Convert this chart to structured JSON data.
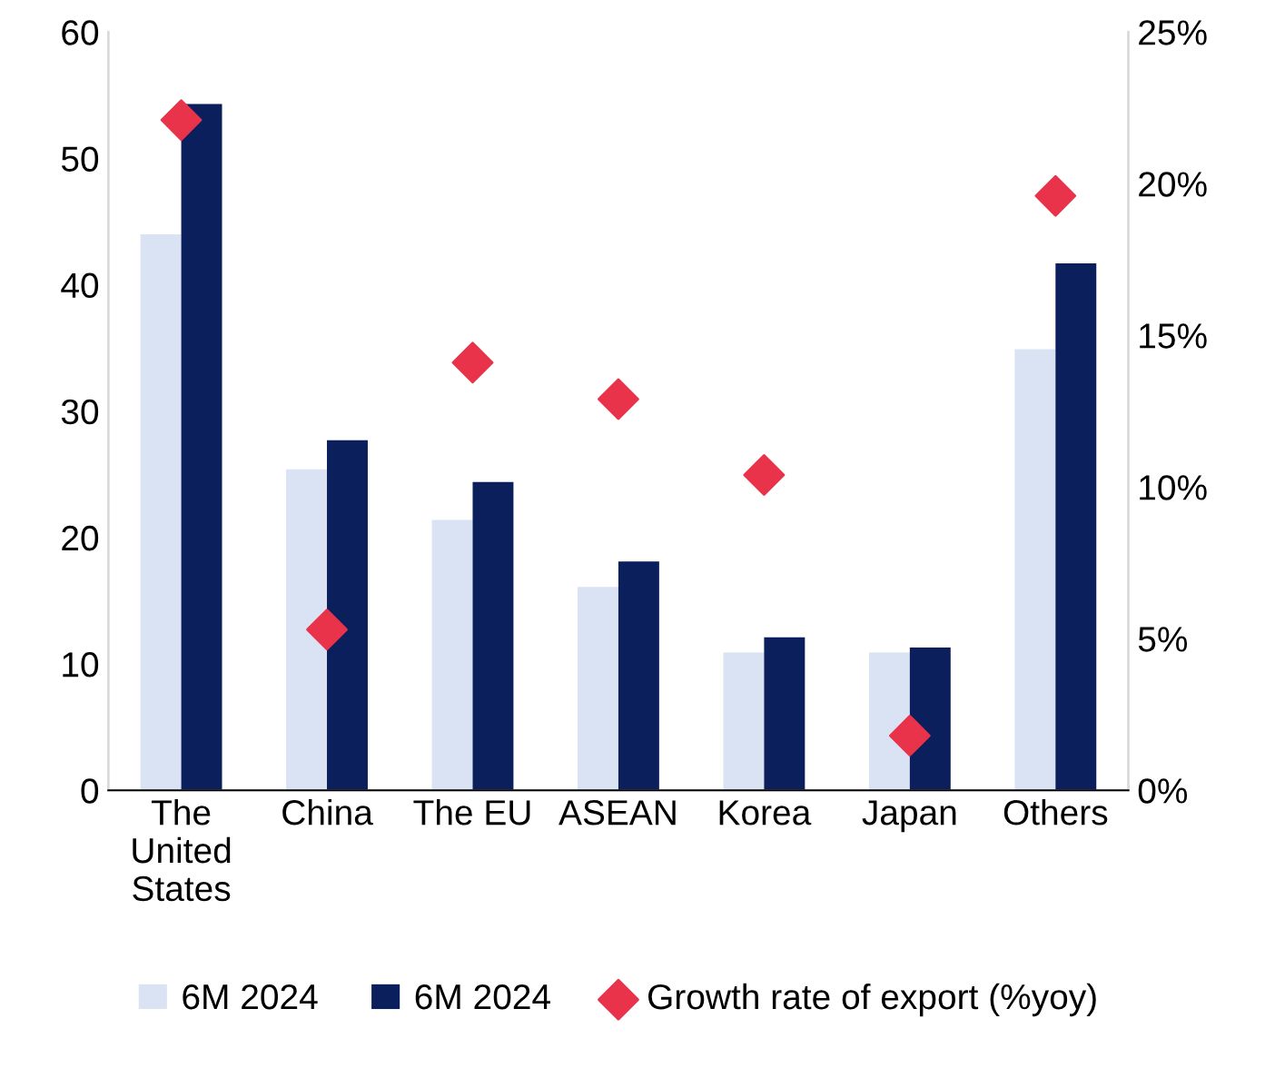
{
  "chart_data": {
    "type": "bar",
    "categories": [
      "The\nUnited\nStates",
      "China",
      "The EU",
      "ASEAN",
      "Korea",
      "Japan",
      "Others"
    ],
    "series": [
      {
        "name": "6M 2024",
        "color": "#dae3f3",
        "values": [
          44.0,
          25.4,
          21.4,
          16.1,
          10.9,
          10.9,
          34.9
        ]
      },
      {
        "name": "6M 2024",
        "color": "#0a1f5c",
        "values": [
          54.3,
          27.7,
          24.4,
          18.1,
          12.1,
          11.3,
          41.7
        ]
      },
      {
        "name": "Growth rate of export (%yoy)",
        "type": "scatter",
        "axis": "y2",
        "marker": "diamond",
        "color": "#e8334a",
        "values": [
          22.1,
          5.3,
          14.1,
          12.9,
          10.4,
          1.8,
          19.6
        ]
      }
    ],
    "ylim": [
      0,
      60
    ],
    "yticks": [
      0,
      10,
      20,
      30,
      40,
      50,
      60
    ],
    "y2lim": [
      0,
      25
    ],
    "y2ticks": [
      {
        "value": 0,
        "label": "0%"
      },
      {
        "value": 5,
        "label": "5%"
      },
      {
        "value": 10,
        "label": "10%"
      },
      {
        "value": 15,
        "label": "15%"
      },
      {
        "value": 20,
        "label": "20%"
      },
      {
        "value": 25,
        "label": "25%"
      }
    ],
    "grid": false,
    "legend": "bottom"
  }
}
